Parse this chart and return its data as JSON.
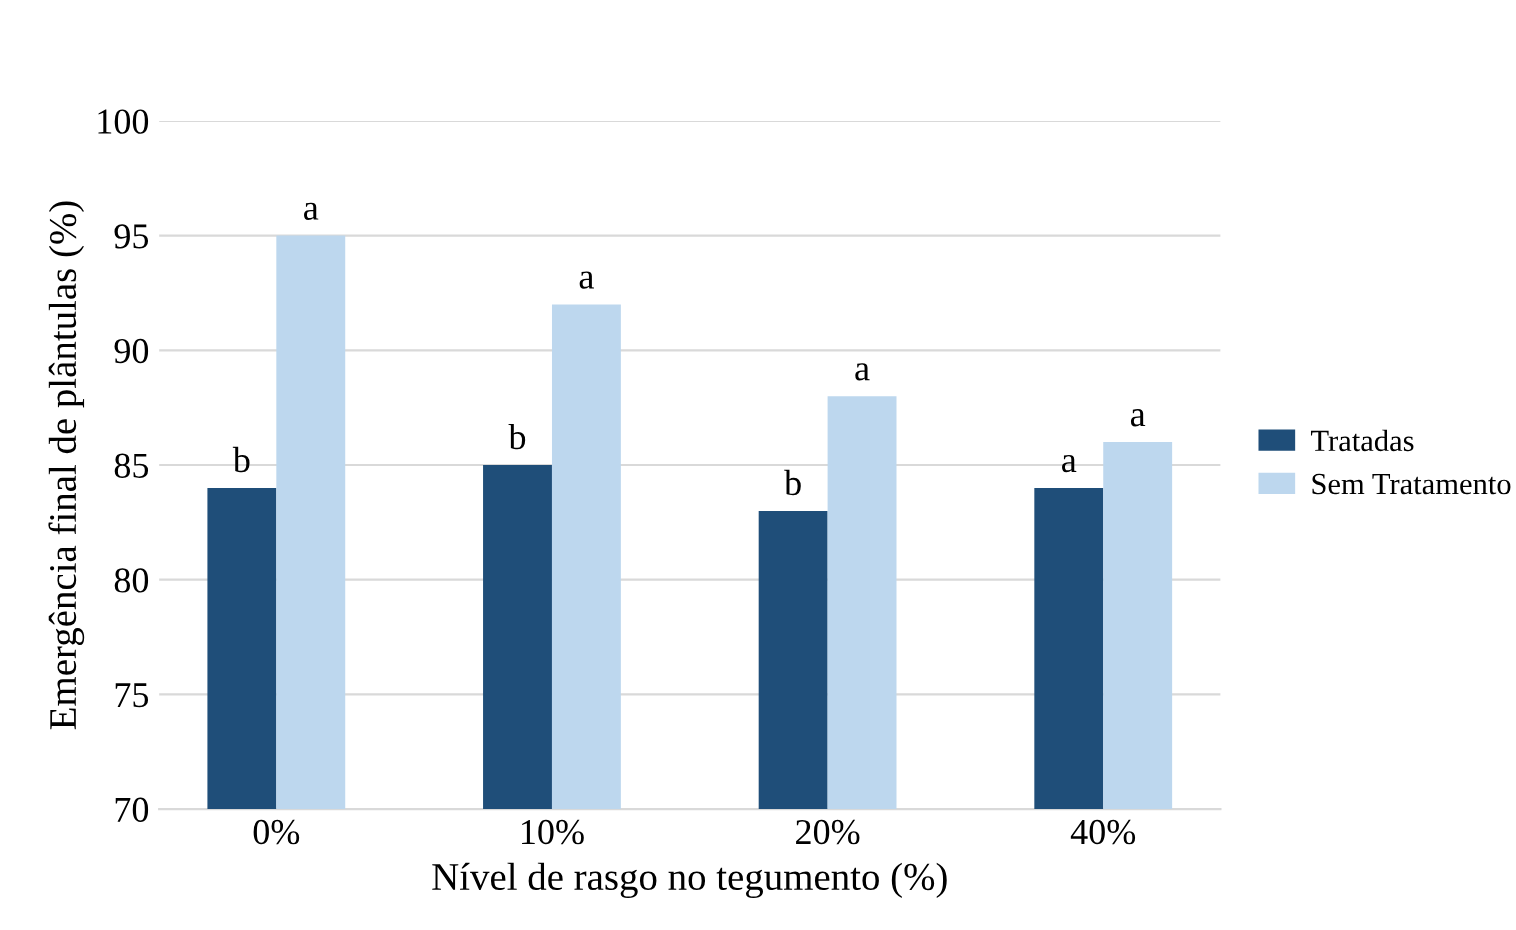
{
  "chart_data": {
    "type": "bar",
    "xlabel": "Nível de rasgo no tegumento (%)",
    "ylabel": "Emergência final de plântulas (%)",
    "categories": [
      "0%",
      "10%",
      "20%",
      "40%"
    ],
    "series": [
      {
        "name": "Tratadas",
        "color": "#1f4e79",
        "values": [
          84,
          85,
          83,
          84
        ],
        "value_labels": [
          "b",
          "b",
          "b",
          "a"
        ]
      },
      {
        "name": "Sem Tratamento",
        "color": "#bdd7ee",
        "values": [
          95,
          92,
          88,
          86
        ],
        "value_labels": [
          "a",
          "a",
          "a",
          "a"
        ]
      }
    ],
    "ylim": [
      70,
      100
    ],
    "yticks": [
      70,
      75,
      80,
      85,
      90,
      95,
      100
    ],
    "grid": "y",
    "legend": "right"
  }
}
